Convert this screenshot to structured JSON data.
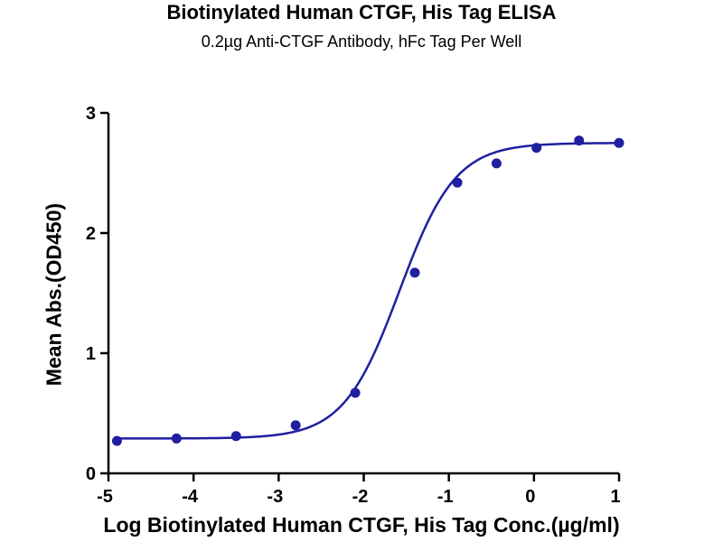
{
  "chart_data": {
    "type": "scatter",
    "title": "Biotinylated Human CTGF, His Tag ELISA",
    "subtitle": "0.2µg Anti-CTGF Antibody, hFc Tag Per Well",
    "xlabel": "Log Biotinylated Human CTGF, His Tag Conc.(µg/ml)",
    "ylabel": "Mean Abs.(OD450)",
    "xlim": [
      -5,
      1
    ],
    "ylim": [
      0,
      3
    ],
    "xticks": [
      "-5",
      "-4",
      "-3",
      "-2",
      "-1",
      "0",
      "1"
    ],
    "yticks": [
      "0",
      "1",
      "2",
      "3"
    ],
    "grid": false,
    "series": [
      {
        "x": [
          -4.9,
          -4.2,
          -3.5,
          -2.8,
          -2.1,
          -1.4,
          -0.9,
          -0.44,
          0.03,
          0.53,
          1.0
        ],
        "y": [
          0.27,
          0.29,
          0.31,
          0.4,
          0.67,
          1.67,
          2.42,
          2.58,
          2.71,
          2.77,
          2.75
        ],
        "color": "#1f1fa0"
      }
    ],
    "fit": {
      "model": "4PL",
      "bottom": 0.29,
      "top": 2.75,
      "log_ec50": -1.58,
      "hill": 1.32,
      "color": "#1f1fa0"
    }
  }
}
